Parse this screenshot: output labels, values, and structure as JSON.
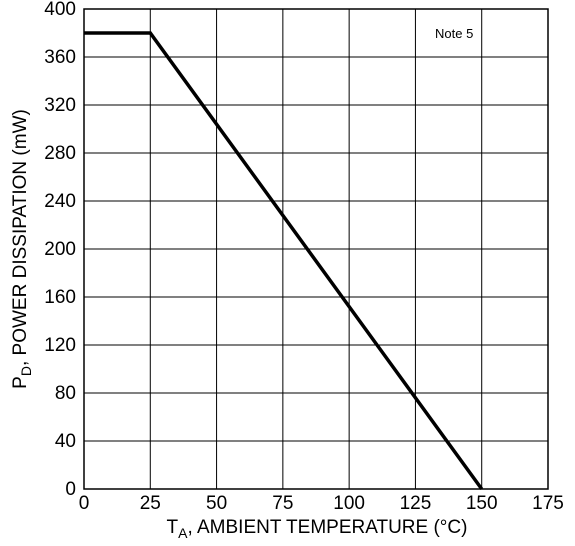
{
  "chart_data": {
    "type": "line",
    "xlabel": {
      "main": "T",
      "sub": "A",
      "rest": ", AMBIENT TEMPERATURE (°C)"
    },
    "ylabel": {
      "main": "P",
      "sub": "D",
      "rest": ", POWER DISSIPATION (mW)"
    },
    "annotation": "Note 5",
    "xlim": [
      0,
      175
    ],
    "ylim": [
      0,
      400
    ],
    "x_ticks": [
      0,
      25,
      50,
      75,
      100,
      125,
      150,
      175
    ],
    "x_tick_labels": [
      "0",
      "25",
      "50",
      "75",
      "100",
      "125",
      "150",
      "175"
    ],
    "y_ticks": [
      0,
      40,
      80,
      120,
      160,
      200,
      240,
      280,
      320,
      360,
      400
    ],
    "y_tick_labels": [
      "0",
      "40",
      "80",
      "120",
      "160",
      "200",
      "240",
      "280",
      "320",
      "360",
      "400"
    ],
    "grid": true,
    "series": [
      {
        "x": [
          0,
          25,
          150
        ],
        "y": [
          380,
          380,
          0
        ],
        "color": "#000000"
      }
    ]
  }
}
